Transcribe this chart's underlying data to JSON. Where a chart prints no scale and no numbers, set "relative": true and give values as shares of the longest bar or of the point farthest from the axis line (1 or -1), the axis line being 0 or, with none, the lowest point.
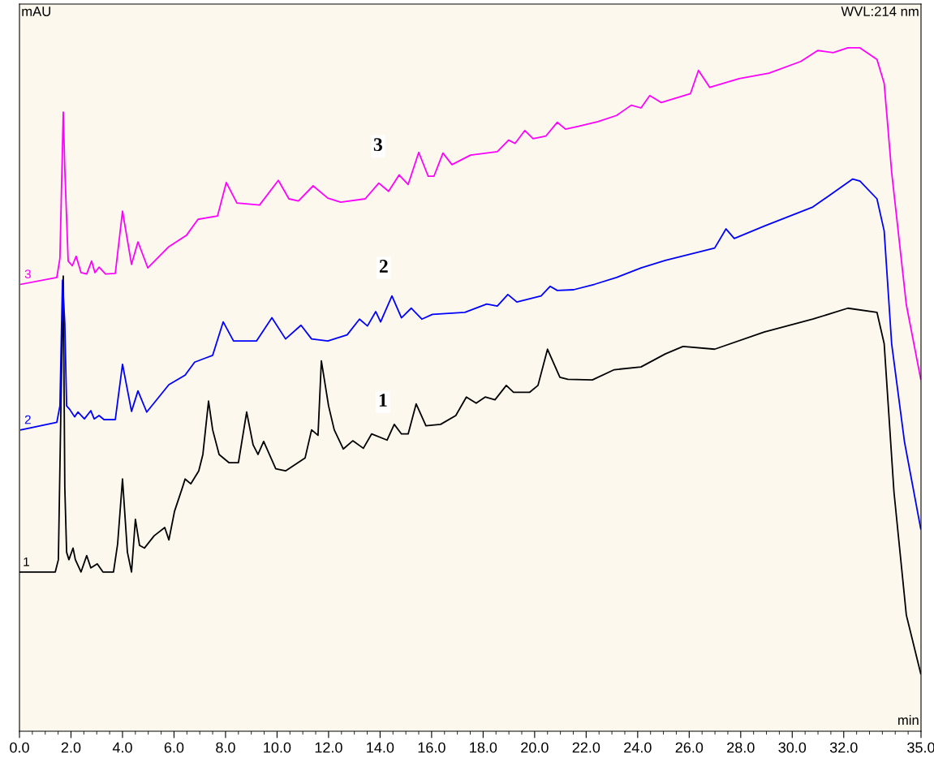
{
  "chart_data": {
    "type": "line",
    "relative": true,
    "ylabel": "mAU",
    "xlabel": "min",
    "legend": false,
    "grid": false,
    "xlim": [
      0,
      35
    ],
    "xticks": [
      {
        "value": 0,
        "label": "0.0"
      },
      {
        "value": 2,
        "label": "2.0"
      },
      {
        "value": 4,
        "label": "4.0"
      },
      {
        "value": 6,
        "label": "6.0"
      },
      {
        "value": 8,
        "label": "8.0"
      },
      {
        "value": 10,
        "label": "10.0"
      },
      {
        "value": 12,
        "label": "12.0"
      },
      {
        "value": 14,
        "label": "14.0"
      },
      {
        "value": 16,
        "label": "16.0"
      },
      {
        "value": 18,
        "label": "18.0"
      },
      {
        "value": 20,
        "label": "20.0"
      },
      {
        "value": 22,
        "label": "22.0"
      },
      {
        "value": 24,
        "label": "24.0"
      },
      {
        "value": 26,
        "label": "26.0"
      },
      {
        "value": 28,
        "label": "28.0"
      },
      {
        "value": 30,
        "label": "30.0"
      },
      {
        "value": 32,
        "label": "32.0"
      },
      {
        "value": 35,
        "label": "35.0"
      }
    ],
    "annotations": [
      "WVL:214 nm",
      {
        "text": "3",
        "x": 13.92,
        "y": 0.856
      },
      {
        "text": "2",
        "x": 14.14,
        "y": 0.678
      },
      {
        "text": "1",
        "x": 14.11,
        "y": 0.482
      }
    ],
    "series": [
      {
        "name": "1",
        "color": "#000000",
        "x": [
          0.0,
          1.39,
          1.51,
          1.61,
          1.7,
          1.76,
          1.83,
          1.92,
          2.08,
          2.17,
          2.39,
          2.61,
          2.77,
          3.02,
          3.24,
          3.65,
          3.81,
          4.0,
          4.19,
          4.35,
          4.5,
          4.66,
          4.85,
          5.23,
          5.64,
          5.8,
          6.02,
          6.33,
          6.43,
          6.65,
          6.96,
          7.12,
          7.34,
          7.5,
          7.75,
          8.13,
          8.5,
          8.82,
          9.07,
          9.26,
          9.48,
          9.95,
          10.33,
          11.09,
          11.34,
          11.59,
          11.72,
          12.0,
          12.22,
          12.57,
          12.94,
          13.35,
          13.67,
          14.27,
          14.55,
          14.83,
          15.09,
          15.4,
          15.78,
          16.35,
          16.94,
          17.35,
          17.73,
          18.08,
          18.46,
          18.9,
          19.18,
          19.81,
          20.13,
          20.5,
          20.98,
          21.29,
          22.24,
          23.09,
          24.13,
          25.07,
          25.76,
          26.99,
          28.91,
          30.8,
          32.16,
          33.29,
          33.57,
          33.95,
          34.43,
          34.99
        ],
        "values": [
          0.233,
          0.233,
          0.251,
          0.476,
          0.666,
          0.357,
          0.262,
          0.251,
          0.268,
          0.251,
          0.233,
          0.257,
          0.239,
          0.245,
          0.233,
          0.233,
          0.274,
          0.369,
          0.262,
          0.233,
          0.31,
          0.272,
          0.268,
          0.286,
          0.298,
          0.28,
          0.322,
          0.357,
          0.369,
          0.362,
          0.381,
          0.405,
          0.483,
          0.441,
          0.405,
          0.393,
          0.393,
          0.467,
          0.419,
          0.405,
          0.424,
          0.384,
          0.381,
          0.4,
          0.441,
          0.433,
          0.542,
          0.476,
          0.441,
          0.413,
          0.425,
          0.414,
          0.435,
          0.426,
          0.449,
          0.435,
          0.435,
          0.479,
          0.447,
          0.449,
          0.462,
          0.489,
          0.48,
          0.489,
          0.485,
          0.506,
          0.496,
          0.496,
          0.506,
          0.559,
          0.518,
          0.515,
          0.514,
          0.529,
          0.533,
          0.552,
          0.563,
          0.559,
          0.584,
          0.603,
          0.619,
          0.613,
          0.567,
          0.35,
          0.17,
          0.084
        ]
      },
      {
        "name": "2",
        "color": "#0000ff",
        "x": [
          0.06,
          1.45,
          1.57,
          1.67,
          1.76,
          1.83,
          1.95,
          2.14,
          2.27,
          2.52,
          2.77,
          2.9,
          3.09,
          3.28,
          3.72,
          4.0,
          4.35,
          4.6,
          4.94,
          5.8,
          6.43,
          6.8,
          7.5,
          7.91,
          8.31,
          9.2,
          9.8,
          10.33,
          10.93,
          11.34,
          11.97,
          12.72,
          13.2,
          13.51,
          13.83,
          14.02,
          14.46,
          14.83,
          15.21,
          15.62,
          16.03,
          17.29,
          18.14,
          18.55,
          18.96,
          19.31,
          20.25,
          20.6,
          20.88,
          21.51,
          22.33,
          23.18,
          24.13,
          25.07,
          26.99,
          27.43,
          27.75,
          28.91,
          30.8,
          32.35,
          32.63,
          33.29,
          33.57,
          33.86,
          34.36,
          34.99
        ],
        "values": [
          0.441,
          0.452,
          0.476,
          0.66,
          0.597,
          0.476,
          0.471,
          0.46,
          0.467,
          0.457,
          0.469,
          0.457,
          0.462,
          0.456,
          0.456,
          0.537,
          0.468,
          0.498,
          0.467,
          0.507,
          0.521,
          0.54,
          0.55,
          0.599,
          0.571,
          0.571,
          0.605,
          0.574,
          0.594,
          0.574,
          0.571,
          0.58,
          0.603,
          0.593,
          0.614,
          0.599,
          0.637,
          0.605,
          0.619,
          0.603,
          0.61,
          0.613,
          0.625,
          0.622,
          0.639,
          0.628,
          0.637,
          0.651,
          0.645,
          0.646,
          0.654,
          0.664,
          0.678,
          0.689,
          0.707,
          0.735,
          0.721,
          0.739,
          0.767,
          0.808,
          0.805,
          0.779,
          0.732,
          0.567,
          0.423,
          0.296
        ]
      },
      {
        "name": "3",
        "color": "#ff00ff",
        "x": [
          0.06,
          1.45,
          1.57,
          1.7,
          1.76,
          1.89,
          2.05,
          2.2,
          2.39,
          2.61,
          2.8,
          2.93,
          3.09,
          3.34,
          3.72,
          4.0,
          4.35,
          4.6,
          4.98,
          5.8,
          6.49,
          6.93,
          7.69,
          8.03,
          8.44,
          9.32,
          10.05,
          10.46,
          10.83,
          11.4,
          11.97,
          12.47,
          13.42,
          13.95,
          14.33,
          14.74,
          15.09,
          15.5,
          15.87,
          16.09,
          16.44,
          16.79,
          17.51,
          18.55,
          18.99,
          19.24,
          19.62,
          19.94,
          20.44,
          20.88,
          21.2,
          21.7,
          22.46,
          23.18,
          23.75,
          24.13,
          24.47,
          24.91,
          26.05,
          26.36,
          26.8,
          27.94,
          29.1,
          30.33,
          30.99,
          31.59,
          32.16,
          32.63,
          33.29,
          33.57,
          33.86,
          34.43,
          34.99
        ],
        "values": [
          0.654,
          0.664,
          0.692,
          0.906,
          0.823,
          0.688,
          0.681,
          0.695,
          0.671,
          0.669,
          0.688,
          0.671,
          0.679,
          0.669,
          0.67,
          0.761,
          0.683,
          0.716,
          0.678,
          0.709,
          0.726,
          0.749,
          0.754,
          0.803,
          0.773,
          0.77,
          0.806,
          0.779,
          0.776,
          0.798,
          0.78,
          0.774,
          0.779,
          0.802,
          0.79,
          0.814,
          0.8,
          0.847,
          0.812,
          0.812,
          0.846,
          0.829,
          0.843,
          0.848,
          0.865,
          0.86,
          0.879,
          0.867,
          0.871,
          0.891,
          0.881,
          0.885,
          0.892,
          0.901,
          0.916,
          0.912,
          0.93,
          0.92,
          0.933,
          0.967,
          0.942,
          0.955,
          0.963,
          0.98,
          0.996,
          0.993,
          1.0,
          1.0,
          0.983,
          0.948,
          0.818,
          0.624,
          0.515
        ]
      }
    ]
  }
}
